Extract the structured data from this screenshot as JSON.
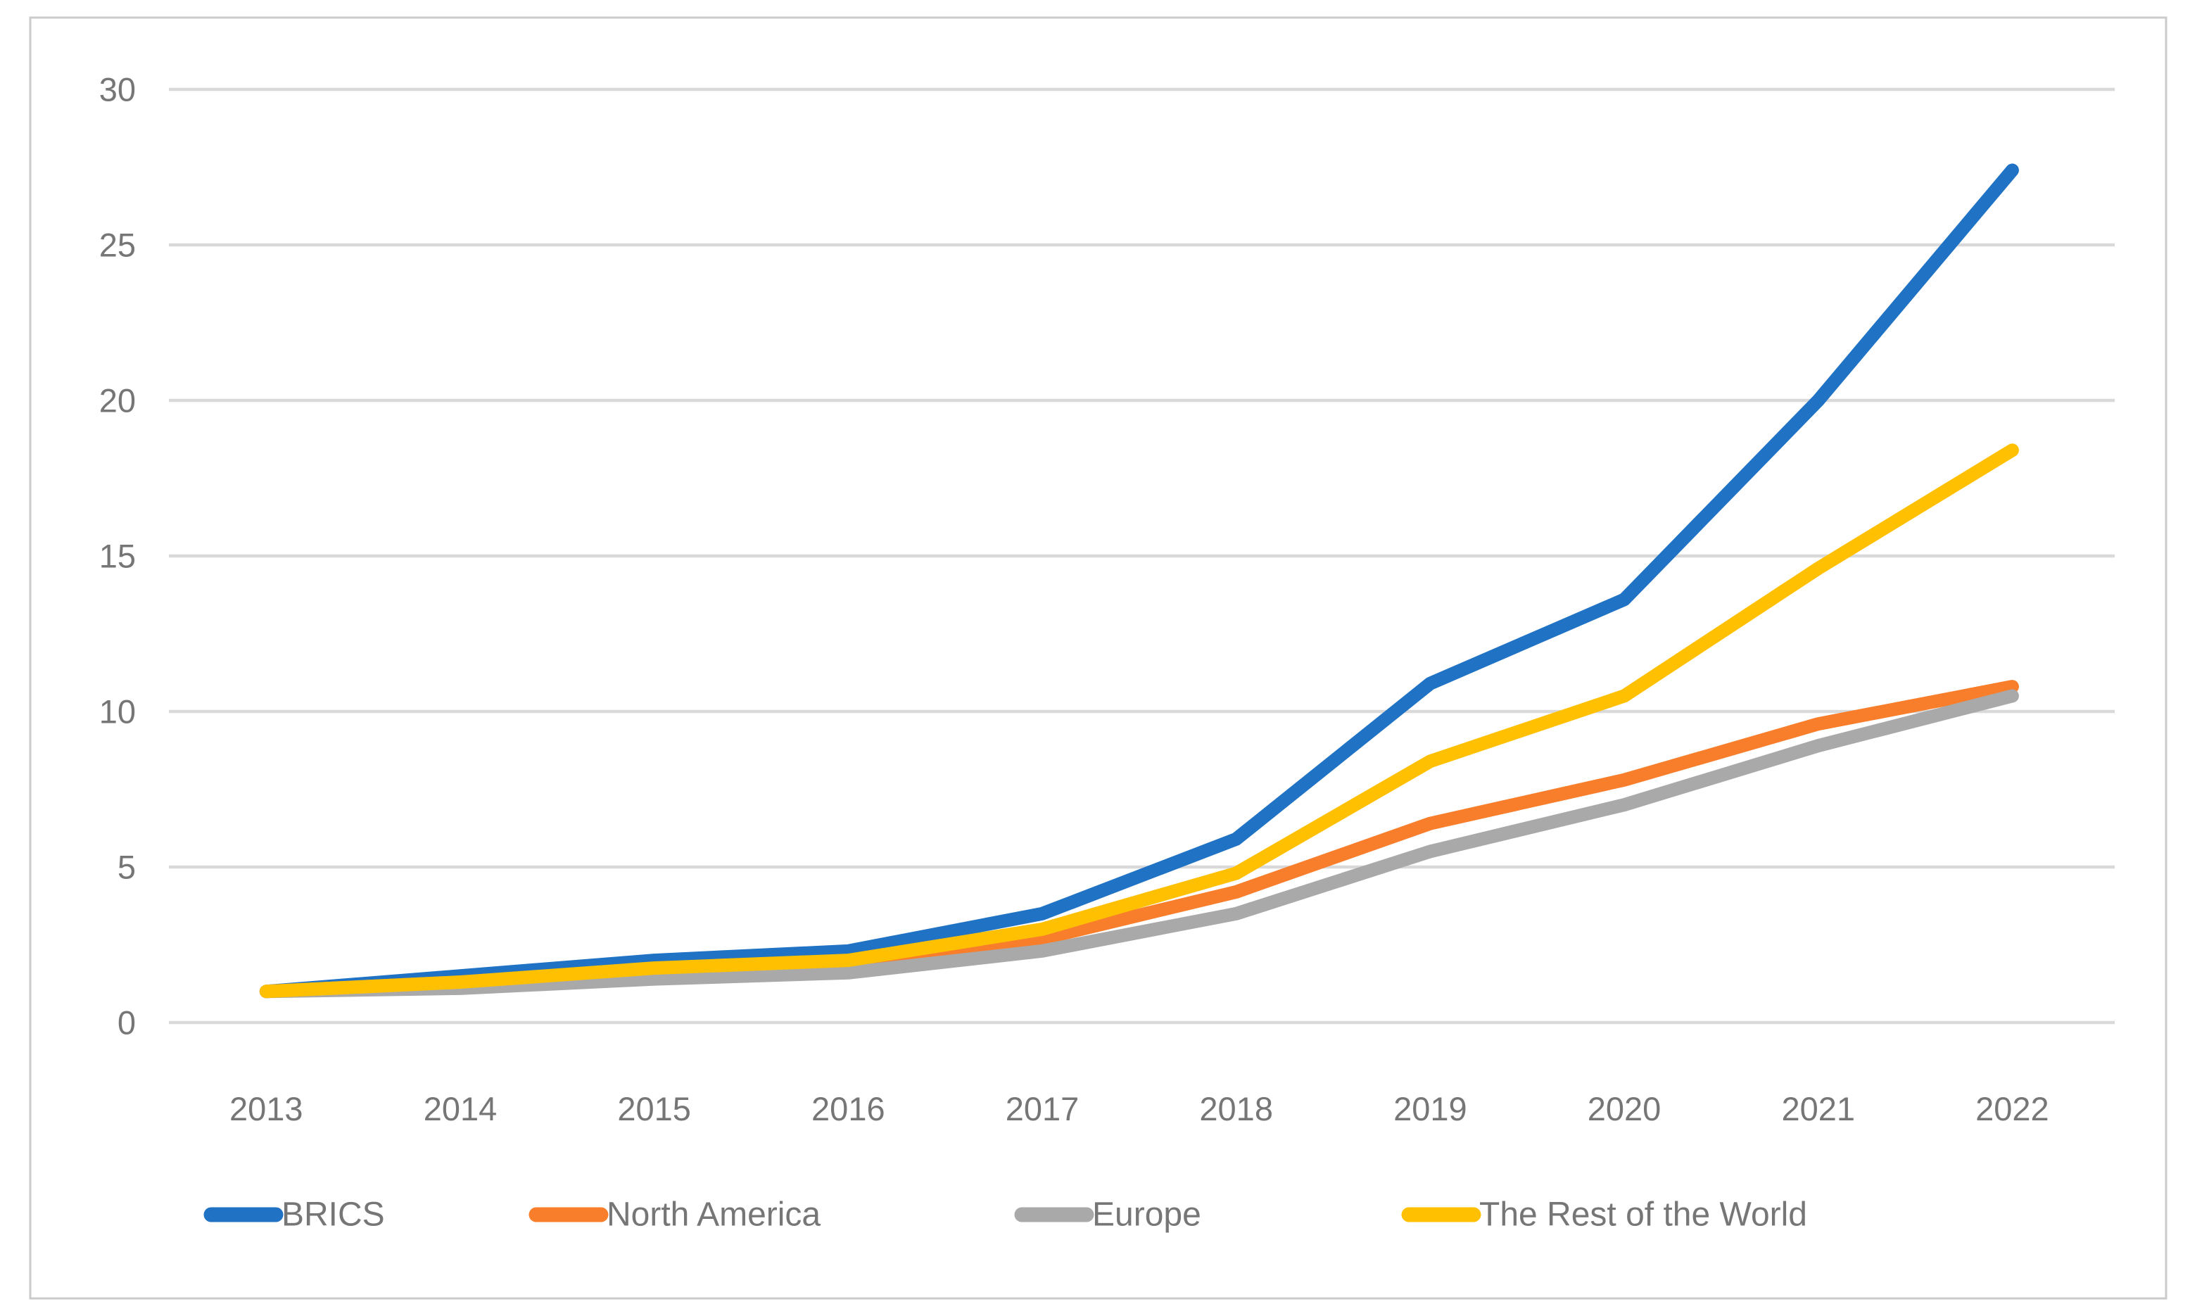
{
  "chart_data": {
    "type": "line",
    "title": "",
    "xlabel": "",
    "ylabel": "",
    "categories": [
      "2013",
      "2014",
      "2015",
      "2016",
      "2017",
      "2018",
      "2019",
      "2020",
      "2021",
      "2022"
    ],
    "series": [
      {
        "name": "BRICS",
        "color": "#1F72C4",
        "values": [
          1.0,
          1.5,
          2.0,
          2.3,
          3.5,
          5.9,
          10.9,
          13.6,
          20.0,
          27.4
        ]
      },
      {
        "name": "North America",
        "color": "#F97E2B",
        "values": [
          1.0,
          1.3,
          1.7,
          1.95,
          2.7,
          4.2,
          6.4,
          7.8,
          9.6,
          10.8
        ]
      },
      {
        "name": "Europe",
        "color": "#A9A9A9",
        "values": [
          1.0,
          1.1,
          1.4,
          1.6,
          2.3,
          3.5,
          5.5,
          7.0,
          8.9,
          10.5
        ]
      },
      {
        "name": "The Rest of the World",
        "color": "#FFC002",
        "values": [
          1.0,
          1.3,
          1.75,
          2.0,
          3.0,
          4.8,
          8.4,
          10.5,
          14.6,
          18.4
        ]
      }
    ],
    "y_ticks": [
      0,
      5,
      10,
      15,
      20,
      25,
      30
    ],
    "ylim": [
      0,
      30
    ],
    "grid": true,
    "legend_position": "bottom",
    "legend_order": [
      "BRICS",
      "North America",
      "Europe",
      "The Rest of the World"
    ],
    "colors": {
      "gridline": "#D9D9D9",
      "frame_border": "#CBCBCB",
      "axis_label": "#767676",
      "background": "#FFFFFF"
    }
  }
}
